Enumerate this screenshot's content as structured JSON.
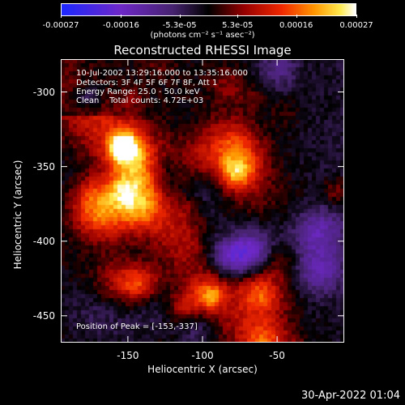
{
  "chart_data": {
    "type": "heatmap",
    "title": "Reconstructed RHESSI Image",
    "xlabel": "Heliocentric X (arcsec)",
    "ylabel": "Heliocentric Y (arcsec)",
    "xlim": [
      -195,
      -5
    ],
    "ylim": [
      -468,
      -278
    ],
    "xticks": [
      -150,
      -100,
      -50
    ],
    "yticks": [
      -300,
      -350,
      -400,
      -450
    ],
    "colorbar": {
      "ticks": [
        "-0.00027",
        "-0.00016",
        "-5.3e-05",
        "5.3e-05",
        "0.00016",
        "0.00027"
      ],
      "tick_values": [
        -0.00027,
        -0.00016,
        -5.3e-05,
        5.3e-05,
        0.00016,
        0.00027
      ],
      "range": [
        -0.00027,
        0.00027
      ],
      "units": "(photons cm⁻² s⁻¹ asec⁻²)"
    },
    "annotations": {
      "time": "10-Jul-2002 13:29:16.000 to 13:35:16.000",
      "detectors": "Detectors: 3F 4F 5F 6F 7F 8F, Att 1",
      "energy": "Energy Range: 25.0 - 50.0 keV",
      "clean": "Clean    Total counts: 4.72E+03",
      "peak": "Position of Peak = [-153,-337]"
    },
    "peak": {
      "x": -153,
      "y": -337
    },
    "colors": {
      "background": "#000000",
      "positive": "#ffa000",
      "negative": "#5a2a9a",
      "peak": "#ffffa0"
    }
  },
  "footer": {
    "date": "30-Apr-2022 01:04"
  }
}
